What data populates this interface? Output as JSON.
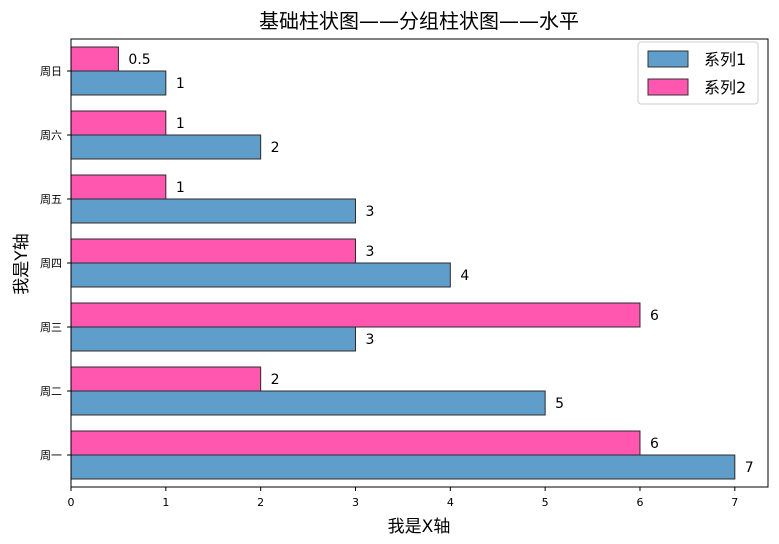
{
  "chart_data": {
    "type": "bar",
    "orientation": "horizontal",
    "title": "基础柱状图——分组柱状图——水平",
    "xlabel": "我是X轴",
    "ylabel": "我是Y轴",
    "categories": [
      "周一",
      "周二",
      "周三",
      "周四",
      "周五",
      "周六",
      "周日"
    ],
    "xlim": [
      0,
      7.35
    ],
    "xticks": [
      0,
      1,
      2,
      3,
      4,
      5,
      6,
      7
    ],
    "series": [
      {
        "name": "系列1",
        "values": [
          7,
          5,
          3,
          4,
          3,
          2,
          1
        ],
        "color": "#5f9ecb"
      },
      {
        "name": "系列2",
        "values": [
          6,
          2,
          6,
          3,
          1,
          1,
          0.5
        ],
        "color": "#ff57b0"
      }
    ],
    "data_labels": {
      "series1": [
        "7",
        "5",
        "3",
        "4",
        "3",
        "2",
        "1"
      ],
      "series2": [
        "6",
        "2",
        "6",
        "3",
        "1",
        "1",
        "0.5"
      ]
    },
    "legend_position": "top-right",
    "grid": false
  }
}
